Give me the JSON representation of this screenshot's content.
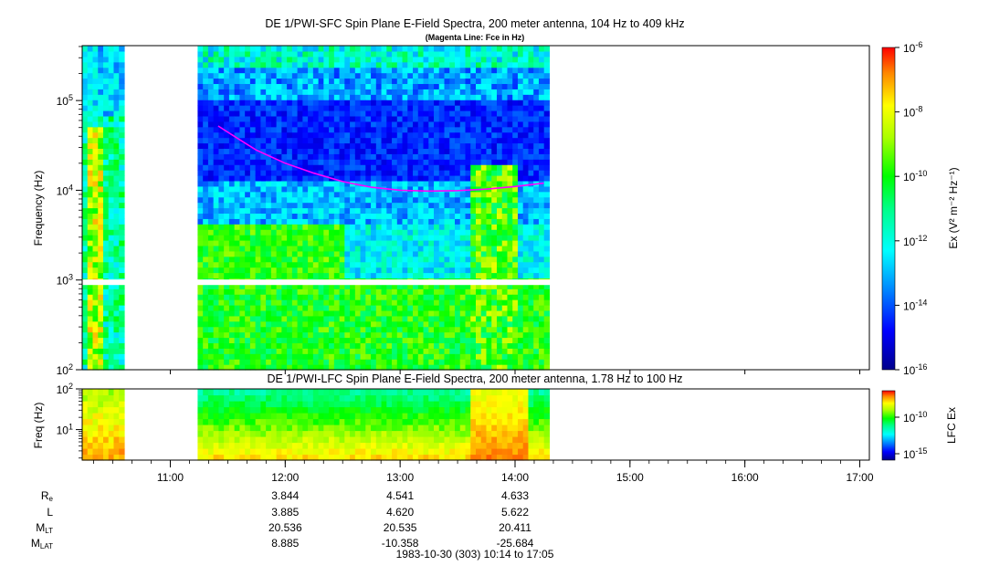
{
  "chart_data": [
    {
      "type": "heatmap",
      "title": "DE 1/PWI-SFC  Spin Plane E-Field Spectra, 200 meter antenna, 104 Hz to 409 kHz",
      "subtitle": "(Magenta Line: Fce in Hz)",
      "ylabel": "Frequency (Hz)",
      "y_scale": "log",
      "ylim": [
        100,
        409000
      ],
      "y_ticks": [
        "10^2",
        "10^3",
        "10^4",
        "10^5"
      ],
      "colorbar": {
        "label": "Ex (V² m⁻² Hz⁻¹)",
        "scale": "log",
        "range": [
          1e-16,
          1e-06
        ],
        "ticks": [
          "10^-6",
          "10^-8",
          "10^-10",
          "10^-12",
          "10^-14",
          "10^-16"
        ]
      },
      "series": [
        {
          "name": "Fce",
          "color": "#ff00ff",
          "x": [
            "11:25",
            "11:35",
            "11:45",
            "12:00",
            "12:15",
            "12:30",
            "12:45",
            "13:00",
            "13:15",
            "13:30",
            "13:45",
            "14:00",
            "14:15"
          ],
          "values": [
            52000,
            38000,
            28000,
            20000,
            15500,
            12500,
            10800,
            10000,
            9800,
            9900,
            10300,
            11000,
            12000
          ]
        }
      ]
    },
    {
      "type": "heatmap",
      "title": "DE 1/PWI-LFC  Spin Plane E-Field Spectra, 200 meter antenna, 1.78 Hz to 100 Hz",
      "ylabel": "Freq (Hz)",
      "y_scale": "log",
      "ylim": [
        1.78,
        100
      ],
      "y_ticks": [
        "10^1",
        "10^2"
      ],
      "colorbar": {
        "label": "LFC Ex",
        "scale": "log",
        "ticks": [
          "10^-10",
          "10^-15"
        ]
      }
    }
  ],
  "time_axis": {
    "range": [
      "10:14",
      "17:05"
    ],
    "ticks": [
      "11:00",
      "12:00",
      "13:00",
      "14:00",
      "15:00",
      "16:00",
      "17:00"
    ]
  },
  "ephemeris": {
    "labels": [
      {
        "main": "R",
        "sub": "e"
      },
      {
        "main": "L",
        "sub": ""
      },
      {
        "main": "M",
        "sub": "LT"
      },
      {
        "main": "M",
        "sub": "LAT"
      }
    ],
    "columns": [
      {
        "time": "12:00",
        "values": [
          "3.844",
          "3.885",
          "20.536",
          "8.885"
        ]
      },
      {
        "time": "13:00",
        "values": [
          "4.541",
          "4.620",
          "20.535",
          "-10.358"
        ]
      },
      {
        "time": "14:00",
        "values": [
          "4.633",
          "5.622",
          "20.411",
          "-25.684"
        ]
      }
    ]
  },
  "footer": "1983-10-30 (303) 10:14 to 17:05",
  "colors": {
    "background": "#ffffff",
    "fce_line": "#ff00ff",
    "colormap": [
      "#00008b",
      "#0000ff",
      "#0088ff",
      "#00ffff",
      "#00ff88",
      "#00ff00",
      "#aaff00",
      "#ffff00",
      "#ff8800",
      "#ff0000"
    ]
  }
}
